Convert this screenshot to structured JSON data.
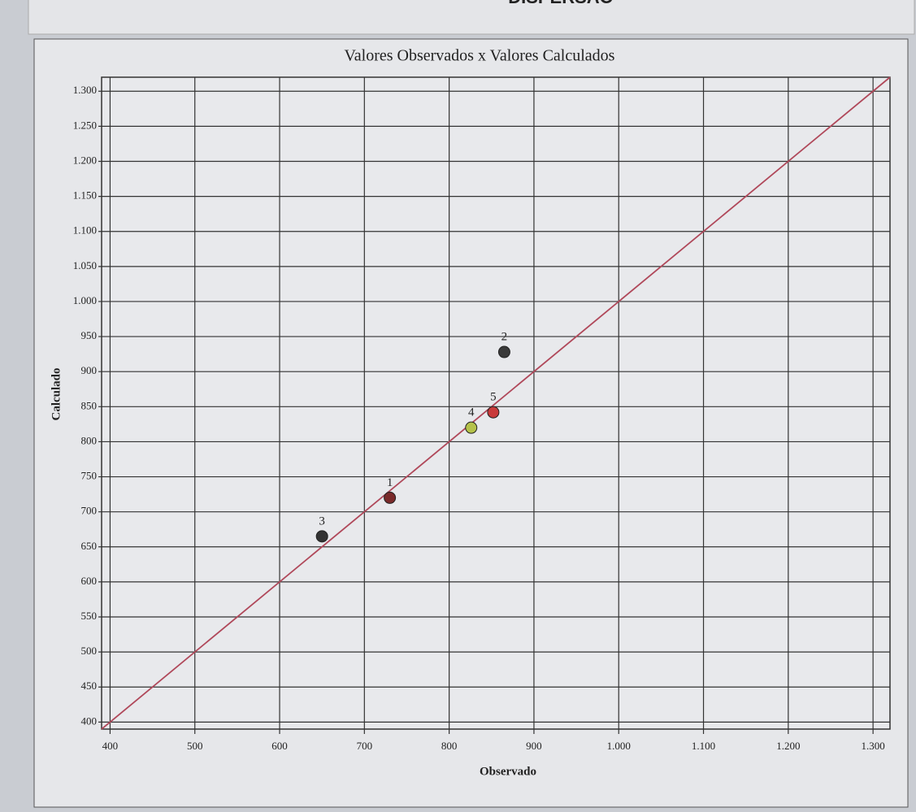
{
  "chart_data": {
    "type": "scatter",
    "header": "DISPERSÃO",
    "title": "Valores Observados x Valores Calculados",
    "x_label": "Observado",
    "y_label": "Calculado",
    "x": [
      730,
      865,
      650,
      826,
      852
    ],
    "values": [
      720,
      928,
      665,
      820,
      842
    ],
    "point_labels": [
      "1",
      "2",
      "3",
      "4",
      "5"
    ],
    "colors": [
      "#7a2a2a",
      "#3a3a3a",
      "#333333",
      "#b5c24a",
      "#c83a3a"
    ],
    "line_color": "#b0485a",
    "xlim": [
      390,
      1320
    ],
    "ylim": [
      390,
      1320
    ],
    "xticks": [
      400,
      500,
      600,
      700,
      800,
      900,
      {
        "value": 1000,
        "label": "1.000"
      },
      {
        "value": 1100,
        "label": "1.100"
      },
      {
        "value": 1200,
        "label": "1.200"
      },
      {
        "value": 1300,
        "label": "1.300"
      }
    ],
    "yticks": [
      400,
      450,
      500,
      550,
      600,
      650,
      700,
      750,
      800,
      850,
      900,
      950,
      {
        "value": 1000,
        "label": "1.000"
      },
      {
        "value": 1050,
        "label": "1.050"
      },
      {
        "value": 1100,
        "label": "1.100"
      },
      {
        "value": 1150,
        "label": "1.150"
      },
      {
        "value": 1200,
        "label": "1.200"
      },
      {
        "value": 1250,
        "label": "1.250"
      },
      {
        "value": 1300,
        "label": "1.300"
      }
    ],
    "grid": true
  }
}
